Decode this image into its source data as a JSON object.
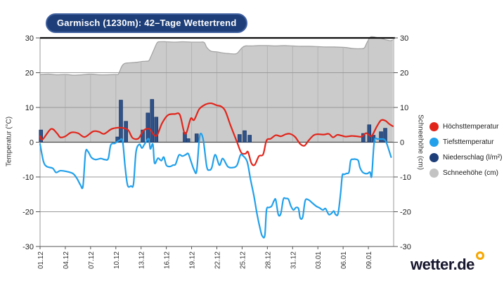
{
  "title": {
    "text": "Garmisch (1230m): 42–Tage Wettertrend"
  },
  "branding": {
    "logo_text": "wetter.de"
  },
  "chart_data": {
    "type": "line",
    "title": "Garmisch (1230m): 42–Tage Wettertrend",
    "x_axis": {
      "range_days": [
        0,
        42
      ],
      "tick_days": [
        0,
        3,
        6,
        9,
        12,
        15,
        18,
        21,
        24,
        27,
        30,
        33,
        36,
        39
      ],
      "tick_labels": [
        "01.12",
        "04.12",
        "07.12",
        "10.12",
        "13.12",
        "16.12",
        "19.12",
        "22.12",
        "25.12",
        "28.12",
        "31.12",
        "03.01",
        "06.01",
        "09.01"
      ]
    },
    "y_axis_left": {
      "label": "Temperatur (°C)",
      "ticks": [
        30,
        20,
        10,
        0,
        -10,
        -20,
        -30
      ],
      "range": [
        -30,
        30
      ]
    },
    "y_axis_right": {
      "label": "Schneehöhe (cm)",
      "ticks": [
        30,
        20,
        10,
        0,
        -10,
        -20,
        -30
      ],
      "range": [
        -30,
        30
      ]
    },
    "grid": {
      "horizontal": true,
      "vertical_inside_snow_area": true
    },
    "legend": {
      "position": "right",
      "items": [
        {
          "label": "Höchsttemperatur",
          "color": "#e1251b"
        },
        {
          "label": "Tiefsttemperatur",
          "color": "#22a0ea"
        },
        {
          "label": "Niederschlag (l/m²)",
          "color": "#1d3e78"
        },
        {
          "label": "Schneehöhe (cm)",
          "color": "#c3c3c3"
        }
      ]
    },
    "series": [
      {
        "name": "Schneehöhe (cm)",
        "type": "area",
        "unit": "cm",
        "color": "#cbcbcb",
        "edge_color": "#a0a0a0",
        "points": [
          [
            0,
            19.5
          ],
          [
            1,
            19.6
          ],
          [
            2,
            19.4
          ],
          [
            3,
            19.5
          ],
          [
            4,
            19.3
          ],
          [
            5,
            19.4
          ],
          [
            6,
            19.6
          ],
          [
            7,
            19.4
          ],
          [
            8,
            19.4
          ],
          [
            9,
            19.5
          ],
          [
            9.3,
            19.6
          ],
          [
            9.7,
            21.8
          ],
          [
            10,
            22.6
          ],
          [
            10.4,
            22.8
          ],
          [
            11,
            22.9
          ],
          [
            11.5,
            23
          ],
          [
            12,
            23.2
          ],
          [
            12.5,
            23.3
          ],
          [
            12.9,
            23.4
          ],
          [
            13.1,
            24.3
          ],
          [
            13.5,
            26.5
          ],
          [
            13.9,
            28.6
          ],
          [
            14.2,
            28.9
          ],
          [
            15,
            28.9
          ],
          [
            16,
            28.8
          ],
          [
            17,
            28.9
          ],
          [
            18,
            28.8
          ],
          [
            19,
            28.8
          ],
          [
            19.5,
            28.7
          ],
          [
            19.8,
            27.3
          ],
          [
            20.3,
            26.2
          ],
          [
            21,
            26
          ],
          [
            21.7,
            25.7
          ],
          [
            22.4,
            25.5
          ],
          [
            23.2,
            25.4
          ],
          [
            23.5,
            25.8
          ],
          [
            24,
            27.2
          ],
          [
            24.4,
            27.7
          ],
          [
            25,
            27.7
          ],
          [
            26,
            27.8
          ],
          [
            27,
            27.8
          ],
          [
            28,
            27.7
          ],
          [
            29,
            27.8
          ],
          [
            30,
            27.7
          ],
          [
            31,
            27.6
          ],
          [
            32,
            27.6
          ],
          [
            33,
            27.5
          ],
          [
            34,
            27.4
          ],
          [
            35,
            27.4
          ],
          [
            36,
            27.3
          ],
          [
            36.5,
            27.2
          ],
          [
            37,
            27
          ],
          [
            37.5,
            26.9
          ],
          [
            38,
            26.9
          ],
          [
            38.5,
            27.1
          ],
          [
            38.8,
            28.5
          ],
          [
            39.2,
            30.2
          ],
          [
            39.6,
            30.3
          ],
          [
            40,
            30.1
          ],
          [
            40.5,
            29.9
          ],
          [
            41,
            29.5
          ],
          [
            41.6,
            29.2
          ],
          [
            41.9,
            29.4
          ]
        ]
      },
      {
        "name": "Niederschlag (l/m²)",
        "type": "bar",
        "unit": "l/m²",
        "color": "#2f5288",
        "edge_color": "#1b3a69",
        "points": [
          [
            0.1,
            3.5
          ],
          [
            9.2,
            1.5
          ],
          [
            9.6,
            12.1
          ],
          [
            10.2,
            6
          ],
          [
            12.2,
            3.5
          ],
          [
            12.8,
            8.4
          ],
          [
            13.3,
            12.3
          ],
          [
            13.8,
            7.2
          ],
          [
            17.2,
            2.8
          ],
          [
            17.6,
            1
          ],
          [
            18.6,
            2.4
          ],
          [
            23.7,
            2.2
          ],
          [
            24.3,
            3.3
          ],
          [
            24.9,
            2
          ],
          [
            38.4,
            2.5
          ],
          [
            39.1,
            5
          ],
          [
            39.6,
            2
          ],
          [
            40.5,
            3
          ],
          [
            41,
            4
          ]
        ]
      },
      {
        "name": "Höchsttemperatur",
        "type": "line",
        "unit": "°C",
        "color": "#e1251b",
        "points": [
          [
            0,
            1.7
          ],
          [
            0.3,
            0.8
          ],
          [
            1.3,
            3.8
          ],
          [
            2,
            2.6
          ],
          [
            2.4,
            1.4
          ],
          [
            3,
            1.7
          ],
          [
            3.7,
            2.8
          ],
          [
            4.5,
            2.6
          ],
          [
            5.3,
            1.5
          ],
          [
            6.3,
            3.1
          ],
          [
            7,
            3
          ],
          [
            7.6,
            2.4
          ],
          [
            8.5,
            3.8
          ],
          [
            9.4,
            4.2
          ],
          [
            10,
            4
          ],
          [
            10.5,
            3.4
          ],
          [
            11,
            1.2
          ],
          [
            11.7,
            1.1
          ],
          [
            12.3,
            3.4
          ],
          [
            13,
            3.8
          ],
          [
            13.5,
            2.2
          ],
          [
            13.9,
            2
          ],
          [
            14.5,
            5.5
          ],
          [
            15.2,
            7.8
          ],
          [
            16,
            8.1
          ],
          [
            16.6,
            7.9
          ],
          [
            17.1,
            3
          ],
          [
            17.4,
            2.8
          ],
          [
            17.9,
            6.8
          ],
          [
            18.3,
            6.4
          ],
          [
            18.9,
            9.5
          ],
          [
            19.6,
            10.8
          ],
          [
            20.3,
            11.2
          ],
          [
            21,
            10.6
          ],
          [
            21.5,
            10.3
          ],
          [
            22,
            9
          ],
          [
            22.6,
            5
          ],
          [
            23.4,
            0
          ],
          [
            23.9,
            -3
          ],
          [
            24.4,
            -3.3
          ],
          [
            24.7,
            -2.8
          ],
          [
            25.1,
            -6
          ],
          [
            25.5,
            -6.5
          ],
          [
            26,
            -4
          ],
          [
            26.5,
            -3.5
          ],
          [
            26.9,
            0.5
          ],
          [
            27.4,
            1
          ],
          [
            28,
            2
          ],
          [
            28.6,
            1.7
          ],
          [
            29.2,
            2.3
          ],
          [
            29.7,
            2.4
          ],
          [
            30.3,
            1.5
          ],
          [
            30.9,
            -0.5
          ],
          [
            31.4,
            -1
          ],
          [
            31.9,
            0.5
          ],
          [
            32.5,
            2
          ],
          [
            33,
            2.3
          ],
          [
            33.7,
            2.2
          ],
          [
            34.3,
            2.4
          ],
          [
            34.8,
            1.4
          ],
          [
            35.3,
            2.1
          ],
          [
            35.8,
            1.9
          ],
          [
            36.3,
            1.6
          ],
          [
            37,
            1.8
          ],
          [
            37.6,
            1.7
          ],
          [
            38.2,
            1.6
          ],
          [
            38.7,
            2.6
          ],
          [
            39,
            2.2
          ],
          [
            39.4,
            1.8
          ],
          [
            40,
            4.5
          ],
          [
            40.5,
            6.3
          ],
          [
            41,
            6.2
          ],
          [
            41.5,
            5.2
          ],
          [
            41.9,
            4.6
          ]
        ]
      },
      {
        "name": "Tiefsttemperatur",
        "type": "line",
        "unit": "°C",
        "color": "#22a0ea",
        "points": [
          [
            0,
            -0.5
          ],
          [
            0.4,
            -5.5
          ],
          [
            0.8,
            -7
          ],
          [
            1.5,
            -7.5
          ],
          [
            1.9,
            -8.7
          ],
          [
            2.4,
            -8.2
          ],
          [
            3.1,
            -8.4
          ],
          [
            3.9,
            -9
          ],
          [
            4.4,
            -10.5
          ],
          [
            4.8,
            -12.3
          ],
          [
            5.1,
            -12.6
          ],
          [
            5.4,
            -3
          ],
          [
            5.7,
            -2.7
          ],
          [
            6.1,
            -4.4
          ],
          [
            6.6,
            -5
          ],
          [
            7.2,
            -4.7
          ],
          [
            7.7,
            -5
          ],
          [
            8.1,
            -4.7
          ],
          [
            8.4,
            -0.8
          ],
          [
            8.9,
            -0.3
          ],
          [
            9.4,
            0.5
          ],
          [
            9.8,
            0.3
          ],
          [
            10.1,
            -7
          ],
          [
            10.4,
            -12.4
          ],
          [
            10.8,
            -12.6
          ],
          [
            11.1,
            -12
          ],
          [
            11.4,
            -2.8
          ],
          [
            11.8,
            -0.6
          ],
          [
            12.1,
            -1.7
          ],
          [
            12.4,
            -0.6
          ],
          [
            12.9,
            1
          ],
          [
            13.1,
            -1.9
          ],
          [
            13.4,
            -0.6
          ],
          [
            13.6,
            -6
          ],
          [
            14,
            -4.6
          ],
          [
            14.4,
            -5.3
          ],
          [
            14.7,
            -4.3
          ],
          [
            15,
            -6.6
          ],
          [
            15.4,
            -7
          ],
          [
            15.8,
            -6.6
          ],
          [
            16.1,
            -6.3
          ],
          [
            16.5,
            -3.7
          ],
          [
            16.9,
            -4
          ],
          [
            17.3,
            -3.6
          ],
          [
            17.6,
            -3.3
          ],
          [
            17.9,
            -5.3
          ],
          [
            18.3,
            -8
          ],
          [
            18.6,
            -8.3
          ],
          [
            18.9,
            0.5
          ],
          [
            19.1,
            2.5
          ],
          [
            19.4,
            0.5
          ],
          [
            19.8,
            -7
          ],
          [
            20.1,
            -8
          ],
          [
            20.4,
            -7.3
          ],
          [
            20.8,
            -3.6
          ],
          [
            21.3,
            -6.6
          ],
          [
            21.7,
            -4.7
          ],
          [
            22.3,
            -7
          ],
          [
            22.9,
            -7.3
          ],
          [
            23.4,
            -6.6
          ],
          [
            23.8,
            -3.7
          ],
          [
            24.1,
            -3.9
          ],
          [
            24.6,
            -5.6
          ],
          [
            25,
            -10.7
          ],
          [
            25.4,
            -15.4
          ],
          [
            25.8,
            -21
          ],
          [
            26.2,
            -25.5
          ],
          [
            26.4,
            -27
          ],
          [
            26.7,
            -26.8
          ],
          [
            26.9,
            -19.5
          ],
          [
            27.2,
            -18.8
          ],
          [
            27.5,
            -18.4
          ],
          [
            27.8,
            -16.8
          ],
          [
            28,
            -16.6
          ],
          [
            28.3,
            -20.8
          ],
          [
            28.6,
            -20.5
          ],
          [
            28.9,
            -16.4
          ],
          [
            29.2,
            -16.2
          ],
          [
            29.5,
            -16.4
          ],
          [
            29.8,
            -18.4
          ],
          [
            30.1,
            -19.5
          ],
          [
            30.4,
            -18.8
          ],
          [
            30.7,
            -19.1
          ],
          [
            30.9,
            -21.8
          ],
          [
            31.2,
            -21.5
          ],
          [
            31.5,
            -16.8
          ],
          [
            31.9,
            -16.6
          ],
          [
            32.3,
            -17.4
          ],
          [
            32.8,
            -18.4
          ],
          [
            33.2,
            -18.9
          ],
          [
            33.6,
            -19.5
          ],
          [
            33.9,
            -19.1
          ],
          [
            34.3,
            -20.8
          ],
          [
            34.6,
            -20.5
          ],
          [
            34.9,
            -19.8
          ],
          [
            35.1,
            -20.8
          ],
          [
            35.4,
            -20.5
          ],
          [
            35.7,
            -14.7
          ],
          [
            35.9,
            -9.6
          ],
          [
            36.1,
            -9.3
          ],
          [
            36.4,
            -9
          ],
          [
            36.7,
            -8.6
          ],
          [
            36.9,
            -5.3
          ],
          [
            37.2,
            -4.9
          ],
          [
            37.5,
            -4.9
          ],
          [
            37.8,
            -5.3
          ],
          [
            38,
            -7.3
          ],
          [
            38.3,
            -8.6
          ],
          [
            38.6,
            -9
          ],
          [
            38.9,
            -9
          ],
          [
            39.2,
            -8.6
          ],
          [
            39.4,
            -9.6
          ],
          [
            39.7,
            0.2
          ],
          [
            40.1,
            0.9
          ],
          [
            40.5,
            0.9
          ],
          [
            40.9,
            0.8
          ],
          [
            41.2,
            -0.5
          ],
          [
            41.7,
            -4.3
          ]
        ]
      }
    ]
  }
}
